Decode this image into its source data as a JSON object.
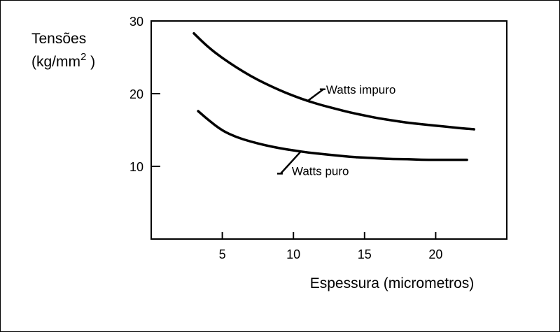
{
  "chart_data": {
    "type": "line",
    "ylabel_line1": "Tensões",
    "ylabel_line2_prefix": "(kg/mm",
    "ylabel_superscript": "2",
    "ylabel_line2_suffix": " )",
    "xlabel": "Espessura (micrometros)",
    "xlim": [
      0,
      25
    ],
    "ylim": [
      0,
      30
    ],
    "x_ticks": [
      5,
      10,
      15,
      20
    ],
    "y_ticks": [
      10,
      20,
      30
    ],
    "x_tick_labels": [
      "5",
      "10",
      "15",
      "20"
    ],
    "y_tick_labels": [
      "10",
      "20",
      "30"
    ],
    "grid": false,
    "series": [
      {
        "name": "Watts impuro",
        "color": "#000000",
        "x": [
          3.0,
          4.0,
          5.0,
          6.0,
          7.0,
          8.0,
          9.0,
          10.0,
          11.0,
          12.0,
          13.0,
          14.0,
          15.0,
          16.0,
          17.0,
          18.0,
          19.0,
          20.0,
          21.0,
          22.0,
          22.7
        ],
        "y": [
          28.3,
          26.4,
          24.9,
          23.6,
          22.4,
          21.4,
          20.5,
          19.7,
          19.0,
          18.4,
          17.9,
          17.4,
          17.0,
          16.6,
          16.3,
          16.0,
          15.8,
          15.6,
          15.4,
          15.2,
          15.1
        ]
      },
      {
        "name": "Watts puro",
        "color": "#000000",
        "x": [
          3.3,
          4.0,
          5.0,
          6.0,
          7.0,
          8.0,
          9.0,
          10.0,
          11.0,
          12.0,
          13.0,
          14.0,
          15.0,
          16.0,
          17.0,
          18.0,
          19.0,
          20.0,
          21.0,
          22.2
        ],
        "y": [
          17.6,
          16.4,
          14.9,
          14.0,
          13.4,
          12.9,
          12.5,
          12.2,
          11.9,
          11.7,
          11.5,
          11.3,
          11.2,
          11.1,
          11.0,
          11.0,
          10.9,
          10.9,
          10.9,
          10.9
        ]
      }
    ],
    "annotations": [
      {
        "text": "Watts impuro",
        "series": 0,
        "arrow_from": [
          12.1,
          20.6
        ],
        "arrow_to": [
          11.0,
          19.0
        ]
      },
      {
        "text": "Watts puro",
        "series": 1,
        "arrow_from": [
          9.1,
          9.0
        ],
        "arrow_to": [
          10.5,
          12.0
        ]
      }
    ]
  }
}
